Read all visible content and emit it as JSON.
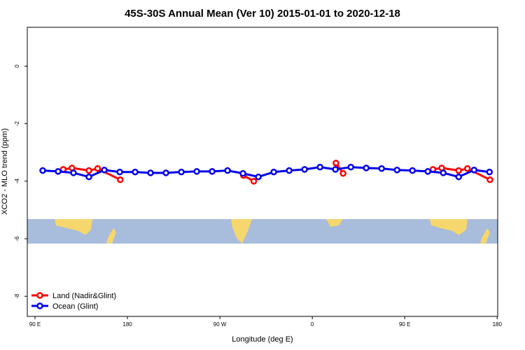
{
  "chart_data": {
    "type": "line",
    "title": "45S-30S Annual Mean (Ver 10)   2015-01-01 to 2020-12-18",
    "x_label": "Longitude (deg E)",
    "y_label": "XCO2 - MLO trend (ppm)",
    "xlim": [
      82.5,
      540.5
    ],
    "ylim": [
      -8.7,
      1.35
    ],
    "xticks": [
      {
        "value": 90,
        "label": "90 E"
      },
      180,
      {
        "value": 270,
        "label": "90 W"
      },
      {
        "value": 360,
        "label": "0"
      },
      {
        "value": 450,
        "label": "90 E"
      },
      {
        "value": 540,
        "label": "180"
      }
    ],
    "yticks": [
      -8,
      -6,
      -4,
      -2,
      0
    ],
    "legend": "bottom-left",
    "series": [
      {
        "name": "Land (Nadir&Glint)",
        "color": "#ff0000",
        "x": [
          117.5,
          126,
          142.5,
          151,
          173,
          null,
          293,
          303,
          null,
          383,
          390,
          null,
          477.5,
          486,
          502.5,
          511,
          533
        ],
        "values": [
          -3.59,
          -3.54,
          -3.63,
          -3.56,
          -3.95,
          null,
          -3.8,
          -4.0,
          null,
          -3.37,
          -3.73,
          null,
          -3.59,
          -3.54,
          -3.63,
          -3.56,
          -3.95
        ]
      },
      {
        "name": "Ocean (Glint)",
        "color": "#0000ee",
        "x": [
          97.5,
          112.5,
          127.5,
          142.5,
          157.5,
          172.5,
          187.5,
          202.5,
          217.5,
          232.5,
          247.5,
          262.5,
          277.5,
          292.5,
          307.5,
          322.5,
          337.5,
          352.5,
          367.5,
          382.5,
          397.5,
          412.5,
          427.5,
          442.5,
          457.5,
          472.5,
          487.5,
          502.5,
          517.5,
          532.5
        ],
        "values": [
          -3.63,
          -3.66,
          -3.71,
          -3.85,
          -3.61,
          -3.68,
          -3.68,
          -3.71,
          -3.71,
          -3.68,
          -3.66,
          -3.66,
          -3.63,
          -3.73,
          -3.85,
          -3.68,
          -3.63,
          -3.59,
          -3.51,
          -3.59,
          -3.51,
          -3.54,
          -3.56,
          -3.61,
          -3.63,
          -3.66,
          -3.71,
          -3.85,
          -3.61,
          -3.68
        ]
      }
    ]
  }
}
